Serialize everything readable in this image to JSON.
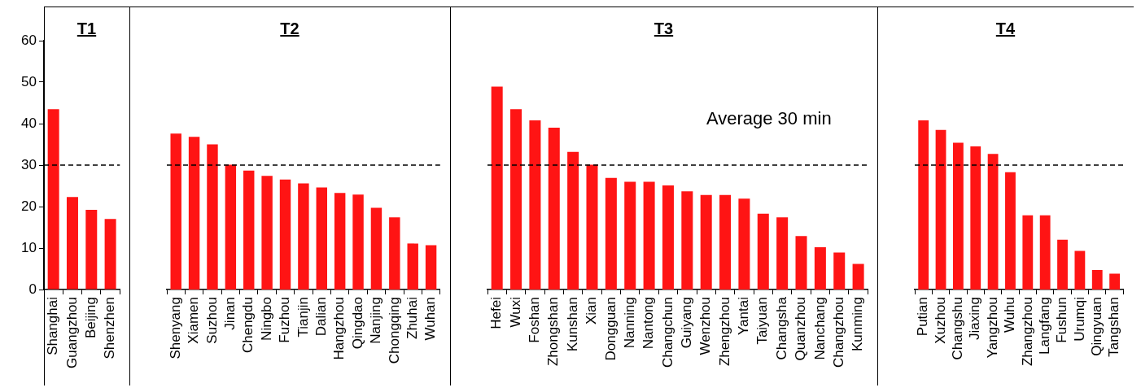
{
  "chart_data": [
    {
      "type": "bar",
      "title": "T1",
      "categories": [
        "Shanghai",
        "Guangzhou",
        "Beijing",
        "Shenzhen"
      ],
      "values": [
        43.5,
        22.3,
        19.2,
        17
      ],
      "color": "#ff1414",
      "ylim": [
        0,
        60
      ],
      "yticks": [
        0,
        10,
        20,
        30,
        40,
        50,
        60
      ],
      "ref_lines": [
        {
          "axis": "y",
          "value": 30,
          "color": "#000000",
          "line_style": "dashed"
        }
      ]
    },
    {
      "type": "bar",
      "title": "T2",
      "categories": [
        "Shenyang",
        "Xiamen",
        "Suzhou",
        "Jinan",
        "Chengdu",
        "Ningbo",
        "Fuzhou",
        "Tianjin",
        "Dalian",
        "Hangzhou",
        "Qingdao",
        "Nanjing",
        "Chongqing",
        "Zhuhai",
        "Wuhan"
      ],
      "values": [
        37.6,
        36.8,
        35,
        30.1,
        28.7,
        27.4,
        26.5,
        25.6,
        24.6,
        23.3,
        22.9,
        19.7,
        17.4,
        11.1,
        10.7
      ],
      "color": "#ff1414",
      "ylim": [
        0,
        60
      ],
      "yticks": [
        0,
        10,
        20,
        30,
        40,
        50,
        60
      ],
      "tick_labels": "x",
      "ref_lines": [
        {
          "axis": "y",
          "value": 30,
          "color": "#000000",
          "line_style": "dashed"
        }
      ]
    },
    {
      "type": "bar",
      "title": "T3",
      "categories": [
        "Hefei",
        "Wuxi",
        "Foshan",
        "Zhongshan",
        "Kunshan",
        "Xian",
        "Dongguan",
        "Nanning",
        "Nantong",
        "Changchun",
        "Guiyang",
        "Wenzhou",
        "Zhengzhou",
        "Yantai",
        "Taiyuan",
        "Changsha",
        "Quanzhou",
        "Nanchang",
        "Changzhou",
        "Kunming"
      ],
      "values": [
        48.9,
        43.5,
        40.8,
        39,
        33.2,
        30.1,
        26.9,
        26,
        26,
        25.1,
        23.7,
        22.8,
        22.8,
        21.9,
        18.3,
        17.4,
        12.9,
        10.2,
        8.9,
        6.2
      ],
      "color": "#ff1414",
      "ylim": [
        0,
        60
      ],
      "yticks": [
        0,
        10,
        20,
        30,
        40,
        50,
        60
      ],
      "tick_labels": "x",
      "ref_lines": [
        {
          "axis": "y",
          "value": 30,
          "label": "Average 30 min",
          "color": "#000000",
          "line_style": "dashed"
        }
      ]
    },
    {
      "type": "bar",
      "title": "T4",
      "categories": [
        "Putian",
        "Xuzhou",
        "Changshu",
        "Jiaxing",
        "Yangzhou",
        "Wuhu",
        "Zhangzhou",
        "Langfang",
        "Fushun",
        "Urumqi",
        "Qingyuan",
        "Tangshan"
      ],
      "values": [
        40.8,
        38.5,
        35.4,
        34.5,
        32.7,
        28.3,
        17.9,
        17.9,
        12,
        9.3,
        4.7,
        3.8
      ],
      "color": "#ff1414",
      "ylim": [
        0,
        60
      ],
      "yticks": [
        0,
        10,
        20,
        30,
        40,
        50,
        60
      ],
      "tick_labels": "x",
      "ref_lines": [
        {
          "axis": "y",
          "value": 30,
          "color": "#000000",
          "line_style": "dashed"
        }
      ]
    }
  ]
}
